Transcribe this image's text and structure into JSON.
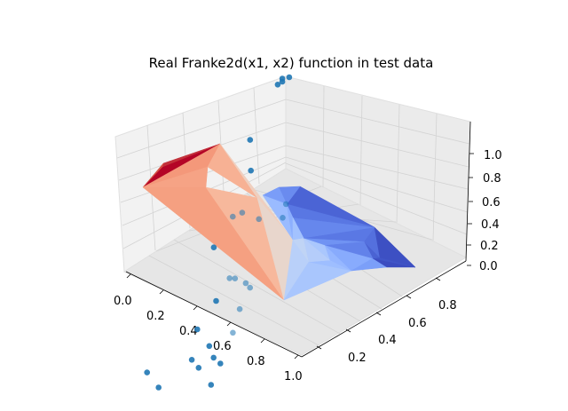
{
  "figure": {
    "title": "Real Franke2d(x1, x2) function in test data"
  },
  "chart_data": {
    "type": "surface3d",
    "title": "Real Franke2d(x1, x2) function in test data",
    "xlabel": "",
    "ylabel": "",
    "zlabel": "",
    "x_ticks": [
      "0.0",
      "0.2",
      "0.4",
      "0.6",
      "0.8",
      "1.0"
    ],
    "y_ticks": [
      "0.2",
      "0.4",
      "0.6",
      "0.8"
    ],
    "z_ticks": [
      "0.0",
      "0.2",
      "0.4",
      "0.6",
      "0.8",
      "1.0"
    ],
    "xlim": [
      0,
      1
    ],
    "ylim": [
      0.05,
      0.95
    ],
    "zlim": [
      0,
      1.1
    ],
    "grid": true,
    "colormap": "coolwarm",
    "colors": {
      "pane": "#f2f2f2",
      "grid": "#d6d6d6",
      "points": "#1f77b4",
      "high": "#b40426",
      "mid": "#f7a889",
      "low": "#3b4cc0"
    },
    "points": [
      {
        "x": 0.02,
        "y": 0.9,
        "z": 0.9
      },
      {
        "x": 0.05,
        "y": 0.92,
        "z": 0.99
      },
      {
        "x": 0.05,
        "y": 0.92,
        "z": 0.96
      },
      {
        "x": 0.1,
        "y": 0.95,
        "z": 1.06
      },
      {
        "x": 0.18,
        "y": 0.75,
        "z": 0.82
      },
      {
        "x": 0.25,
        "y": 0.75,
        "z": 0.65
      },
      {
        "x": 0.35,
        "y": 0.7,
        "z": 0.48
      },
      {
        "x": 0.38,
        "y": 0.65,
        "z": 0.55
      },
      {
        "x": 0.4,
        "y": 0.78,
        "z": 0.42
      },
      {
        "x": 0.35,
        "y": 0.92,
        "z": 0.32
      },
      {
        "x": 0.4,
        "y": 0.9,
        "z": 0.3
      },
      {
        "x": 0.45,
        "y": 0.55,
        "z": 0.49
      },
      {
        "x": 0.55,
        "y": 0.65,
        "z": 0.26
      },
      {
        "x": 0.62,
        "y": 0.55,
        "z": 0.28
      },
      {
        "x": 0.7,
        "y": 0.45,
        "z": 0.26
      },
      {
        "x": 0.72,
        "y": 0.66,
        "z": 0.26
      },
      {
        "x": 0.75,
        "y": 0.42,
        "z": 0.09
      },
      {
        "x": 0.8,
        "y": 0.45,
        "z": 0.07
      },
      {
        "x": 0.82,
        "y": 0.5,
        "z": 0.26
      },
      {
        "x": 0.85,
        "y": 0.52,
        "z": 0.18
      },
      {
        "x": 0.9,
        "y": 0.55,
        "z": 0.18
      },
      {
        "x": 0.95,
        "y": 0.5,
        "z": 0.12
      },
      {
        "x": 0.8,
        "y": 0.62,
        "z": 0.22
      },
      {
        "x": 0.7,
        "y": 0.2,
        "z": 0.12
      },
      {
        "x": 0.8,
        "y": 0.25,
        "z": 0.1
      },
      {
        "x": 0.92,
        "y": 0.06,
        "z": 0.25
      },
      {
        "x": 0.98,
        "y": 0.28,
        "z": 0.09
      },
      {
        "x": 0.62,
        "y": 0.72,
        "z": 0.22
      },
      {
        "x": 0.6,
        "y": 0.7,
        "z": 0.25
      },
      {
        "x": 0.58,
        "y": 0.62,
        "z": 0.35
      }
    ]
  }
}
